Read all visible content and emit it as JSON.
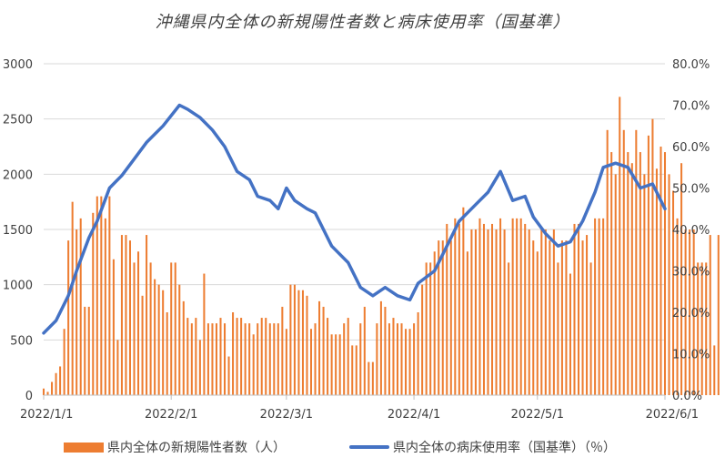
{
  "chart_data": {
    "type": "bar+line",
    "title": "沖縄県内全体の新規陽性者数と病床使用率（国基準）",
    "x_axis": {
      "type": "date",
      "range": [
        "2022/1/1",
        "2022/6/1"
      ],
      "tick_labels": [
        "2022/1/1",
        "2022/2/1",
        "2022/3/1",
        "2022/4/1",
        "2022/5/1",
        "2022/6/1"
      ]
    },
    "y_left": {
      "range": [
        0,
        3000
      ],
      "ticks": [
        "0",
        "500",
        "1000",
        "1500",
        "2000",
        "2500",
        "3000"
      ]
    },
    "y_right": {
      "range": [
        0,
        0.8
      ],
      "ticks": [
        "0.0%",
        "10.0%",
        "20.0%",
        "30.0%",
        "40.0%",
        "50.0%",
        "60.0%",
        "70.0%",
        "80.0%"
      ]
    },
    "grid": true,
    "legend_position": "bottom",
    "series": [
      {
        "name": "県内全体の新規陽性者数（人）",
        "type": "bar",
        "axis": "left",
        "color": "#ED7D31",
        "x_start": "2022/1/1",
        "x_step_days": 1,
        "values": [
          60,
          30,
          120,
          200,
          260,
          600,
          1400,
          1750,
          1500,
          1600,
          800,
          800,
          1650,
          1800,
          1800,
          1600,
          1800,
          1230,
          500,
          1450,
          1450,
          1400,
          1200,
          1300,
          900,
          1450,
          1200,
          1050,
          1000,
          950,
          750,
          1200,
          1200,
          1000,
          850,
          700,
          650,
          700,
          500,
          1100,
          650,
          650,
          650,
          700,
          650,
          350,
          750,
          700,
          700,
          650,
          650,
          550,
          650,
          700,
          700,
          650,
          650,
          650,
          800,
          600,
          1000,
          1000,
          950,
          950,
          900,
          600,
          650,
          850,
          800,
          700,
          550,
          550,
          550,
          650,
          700,
          450,
          450,
          650,
          800,
          300,
          300,
          650,
          850,
          800,
          650,
          700,
          650,
          650,
          600,
          600,
          650,
          750,
          1000,
          1200,
          1200,
          1300,
          1400,
          1400,
          1550,
          1400,
          1600,
          1550,
          1700,
          1300,
          1500,
          1500,
          1600,
          1550,
          1500,
          1550,
          1500,
          1600,
          1500,
          1200,
          1600,
          1600,
          1600,
          1550,
          1500,
          1400,
          1300,
          1500,
          1500,
          1400,
          1500,
          1200,
          1400,
          1400,
          1100,
          1550,
          1550,
          1400,
          1450,
          1200,
          1600,
          1600,
          1600,
          2400,
          2200,
          2000,
          2700,
          2400,
          2200,
          2100,
          2400,
          2200,
          2000,
          2350,
          2500,
          2050,
          2250,
          2200,
          2000,
          1850,
          1600,
          2100,
          1500,
          1500,
          1500,
          1200,
          1200,
          1200,
          1450,
          450,
          1450
        ]
      },
      {
        "name": "県内全体の病床使用率（国基準）（％）",
        "type": "line",
        "axis": "right",
        "color": "#4472C4",
        "x": [
          "2022/1/1",
          "2022/1/4",
          "2022/1/7",
          "2022/1/9",
          "2022/1/12",
          "2022/1/14",
          "2022/1/17",
          "2022/1/20",
          "2022/1/23",
          "2022/1/26",
          "2022/1/28",
          "2022/1/30",
          "2022/2/3",
          "2022/2/5",
          "2022/2/8",
          "2022/2/11",
          "2022/2/14",
          "2022/2/17",
          "2022/2/20",
          "2022/2/22",
          "2022/2/25",
          "2022/2/27",
          "2022/3/1",
          "2022/3/3",
          "2022/3/6",
          "2022/3/8",
          "2022/3/12",
          "2022/3/16",
          "2022/3/19",
          "2022/3/22",
          "2022/3/25",
          "2022/3/28",
          "2022/3/31",
          "2022/4/2",
          "2022/4/6",
          "2022/4/9",
          "2022/4/12",
          "2022/4/16",
          "2022/4/19",
          "2022/4/22",
          "2022/4/25",
          "2022/4/28",
          "2022/4/30",
          "2022/5/3",
          "2022/5/6",
          "2022/5/9",
          "2022/5/12",
          "2022/5/15",
          "2022/5/17",
          "2022/5/20",
          "2022/5/23",
          "2022/5/26",
          "2022/5/29",
          "2022/6/1"
        ],
        "y": [
          0.15,
          0.18,
          0.24,
          0.3,
          0.38,
          0.42,
          0.5,
          0.53,
          0.57,
          0.61,
          0.63,
          0.65,
          0.7,
          0.69,
          0.67,
          0.64,
          0.6,
          0.54,
          0.52,
          0.48,
          0.47,
          0.45,
          0.5,
          0.47,
          0.45,
          0.44,
          0.36,
          0.32,
          0.26,
          0.24,
          0.26,
          0.24,
          0.23,
          0.27,
          0.3,
          0.36,
          0.42,
          0.46,
          0.49,
          0.54,
          0.47,
          0.48,
          0.43,
          0.39,
          0.36,
          0.37,
          0.42,
          0.49,
          0.55,
          0.56,
          0.55,
          0.5,
          0.51,
          0.45
        ]
      }
    ]
  }
}
